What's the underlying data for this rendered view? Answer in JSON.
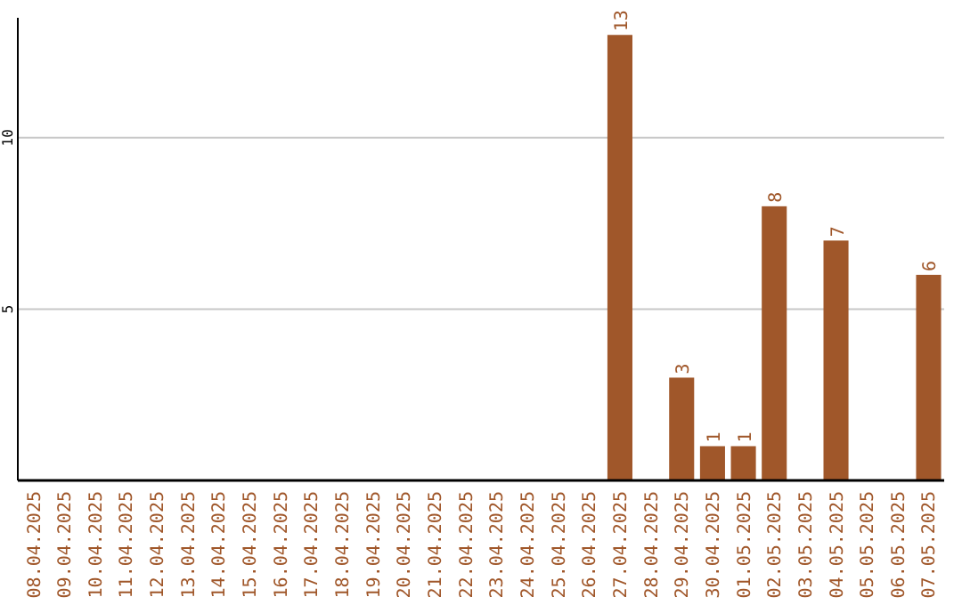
{
  "chart_data": {
    "type": "bar",
    "categories": [
      "08.04.2025",
      "09.04.2025",
      "10.04.2025",
      "11.04.2025",
      "12.04.2025",
      "13.04.2025",
      "14.04.2025",
      "15.04.2025",
      "16.04.2025",
      "17.04.2025",
      "18.04.2025",
      "19.04.2025",
      "20.04.2025",
      "21.04.2025",
      "22.04.2025",
      "23.04.2025",
      "24.04.2025",
      "25.04.2025",
      "26.04.2025",
      "27.04.2025",
      "28.04.2025",
      "29.04.2025",
      "30.04.2025",
      "01.05.2025",
      "02.05.2025",
      "03.05.2025",
      "04.05.2025",
      "05.05.2025",
      "06.05.2025",
      "07.05.2025"
    ],
    "values": [
      0,
      0,
      0,
      0,
      0,
      0,
      0,
      0,
      0,
      0,
      0,
      0,
      0,
      0,
      0,
      0,
      0,
      0,
      0,
      13,
      0,
      3,
      1,
      1,
      8,
      0,
      7,
      0,
      0,
      6
    ],
    "value_labels": [
      null,
      null,
      null,
      null,
      null,
      null,
      null,
      null,
      null,
      null,
      null,
      null,
      null,
      null,
      null,
      null,
      null,
      null,
      null,
      "13",
      null,
      "3",
      "1",
      "1",
      "8",
      null,
      "7",
      null,
      null,
      "6"
    ],
    "color": "#a0572a",
    "ylim": [
      0,
      13.5
    ],
    "yticks": [
      5,
      10
    ],
    "grid": "y"
  }
}
